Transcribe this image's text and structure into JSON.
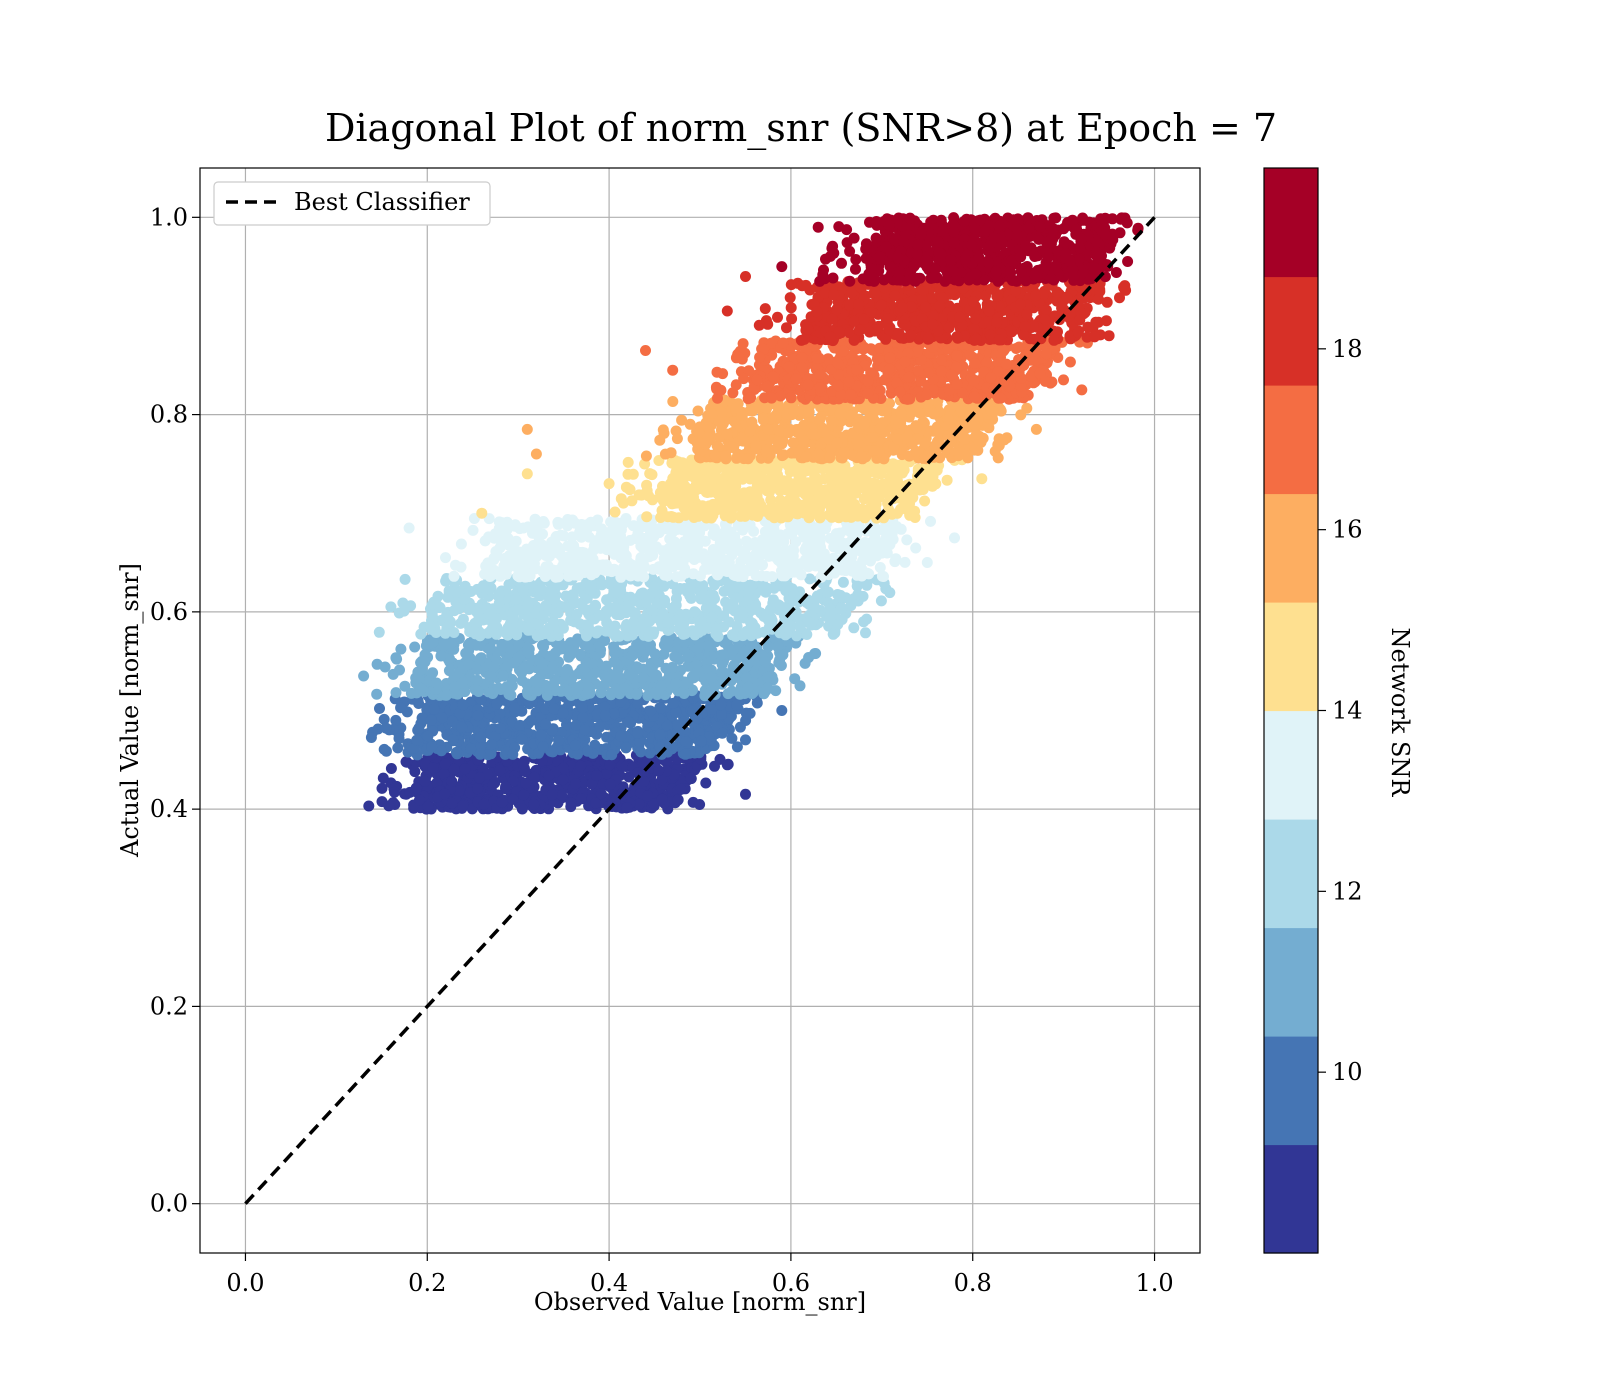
{
  "chart_data": {
    "type": "scatter",
    "title": "Diagonal Plot of norm_snr (SNR>8) at Epoch = 7",
    "xlabel": "Observed Value [norm_snr]",
    "ylabel": "Actual Value [norm_snr]",
    "xlim": [
      -0.05,
      1.05
    ],
    "ylim": [
      -0.05,
      1.05
    ],
    "xticks": [
      "0.0",
      "0.2",
      "0.4",
      "0.6",
      "0.8",
      "1.0"
    ],
    "yticks": [
      "0.0",
      "0.2",
      "0.4",
      "0.6",
      "0.8",
      "1.0"
    ],
    "grid": true,
    "legend": {
      "position": "top-left",
      "entries": [
        "Best Classifier"
      ]
    },
    "reference_line": {
      "name": "Best Classifier",
      "style": "dashed",
      "color": "#000000",
      "x": [
        0,
        1
      ],
      "y": [
        0,
        1
      ]
    },
    "colorbar": {
      "label": "Network SNR",
      "range": [
        8,
        20
      ],
      "ticks": [
        "10",
        "12",
        "14",
        "16",
        "18"
      ],
      "colors": [
        "#313695",
        "#4575b4",
        "#74add1",
        "#abd9e9",
        "#e0f3f8",
        "#fee090",
        "#fdae61",
        "#f46d43",
        "#d73027",
        "#a50026"
      ]
    },
    "bands": [
      {
        "snr": 8.5,
        "color": "#313695",
        "y": [
          0.4,
          0.455
        ],
        "x": [
          0.13,
          0.52
        ]
      },
      {
        "snr": 9.8,
        "color": "#4575b4",
        "y": [
          0.455,
          0.515
        ],
        "x": [
          0.13,
          0.56
        ]
      },
      {
        "snr": 11.0,
        "color": "#74add1",
        "y": [
          0.515,
          0.575
        ],
        "x": [
          0.13,
          0.62
        ]
      },
      {
        "snr": 12.2,
        "color": "#abd9e9",
        "y": [
          0.575,
          0.635
        ],
        "x": [
          0.14,
          0.7
        ]
      },
      {
        "snr": 13.4,
        "color": "#e0f3f8",
        "y": [
          0.635,
          0.695
        ],
        "x": [
          0.21,
          0.74
        ]
      },
      {
        "snr": 14.6,
        "color": "#fee090",
        "y": [
          0.695,
          0.755
        ],
        "x": [
          0.4,
          0.78
        ]
      },
      {
        "snr": 15.8,
        "color": "#fdae61",
        "y": [
          0.755,
          0.815
        ],
        "x": [
          0.44,
          0.85
        ]
      },
      {
        "snr": 17.0,
        "color": "#f46d43",
        "y": [
          0.815,
          0.875
        ],
        "x": [
          0.5,
          0.91
        ]
      },
      {
        "snr": 18.2,
        "color": "#d73027",
        "y": [
          0.875,
          0.935
        ],
        "x": [
          0.56,
          0.96
        ]
      },
      {
        "snr": 19.4,
        "color": "#a50026",
        "y": [
          0.935,
          1.0
        ],
        "x": [
          0.63,
          0.98
        ]
      }
    ],
    "outliers": [
      {
        "x": 0.31,
        "y": 0.785,
        "color": "#fdae61"
      },
      {
        "x": 0.32,
        "y": 0.76,
        "color": "#fdae61"
      },
      {
        "x": 0.31,
        "y": 0.74,
        "color": "#fee090"
      },
      {
        "x": 0.4,
        "y": 0.73,
        "color": "#fee090"
      },
      {
        "x": 0.26,
        "y": 0.7,
        "color": "#fee090"
      },
      {
        "x": 0.44,
        "y": 0.865,
        "color": "#f46d43"
      },
      {
        "x": 0.47,
        "y": 0.845,
        "color": "#f46d43"
      },
      {
        "x": 0.18,
        "y": 0.685,
        "color": "#e0f3f8"
      },
      {
        "x": 0.22,
        "y": 0.655,
        "color": "#e0f3f8"
      },
      {
        "x": 0.28,
        "y": 0.665,
        "color": "#e0f3f8"
      },
      {
        "x": 0.59,
        "y": 0.95,
        "color": "#a50026"
      },
      {
        "x": 0.63,
        "y": 0.99,
        "color": "#a50026"
      },
      {
        "x": 0.53,
        "y": 0.905,
        "color": "#d73027"
      },
      {
        "x": 0.55,
        "y": 0.94,
        "color": "#d73027"
      },
      {
        "x": 0.16,
        "y": 0.605,
        "color": "#abd9e9"
      },
      {
        "x": 0.13,
        "y": 0.535,
        "color": "#74add1"
      },
      {
        "x": 0.55,
        "y": 0.415,
        "color": "#313695"
      },
      {
        "x": 0.53,
        "y": 0.445,
        "color": "#313695"
      },
      {
        "x": 0.59,
        "y": 0.5,
        "color": "#4575b4"
      },
      {
        "x": 0.61,
        "y": 0.525,
        "color": "#74add1"
      },
      {
        "x": 0.68,
        "y": 0.59,
        "color": "#abd9e9"
      },
      {
        "x": 0.75,
        "y": 0.65,
        "color": "#e0f3f8"
      },
      {
        "x": 0.78,
        "y": 0.675,
        "color": "#e0f3f8"
      },
      {
        "x": 0.81,
        "y": 0.735,
        "color": "#fee090"
      },
      {
        "x": 0.87,
        "y": 0.785,
        "color": "#fdae61"
      },
      {
        "x": 0.92,
        "y": 0.825,
        "color": "#f46d43"
      },
      {
        "x": 0.95,
        "y": 0.88,
        "color": "#d73027"
      }
    ]
  }
}
